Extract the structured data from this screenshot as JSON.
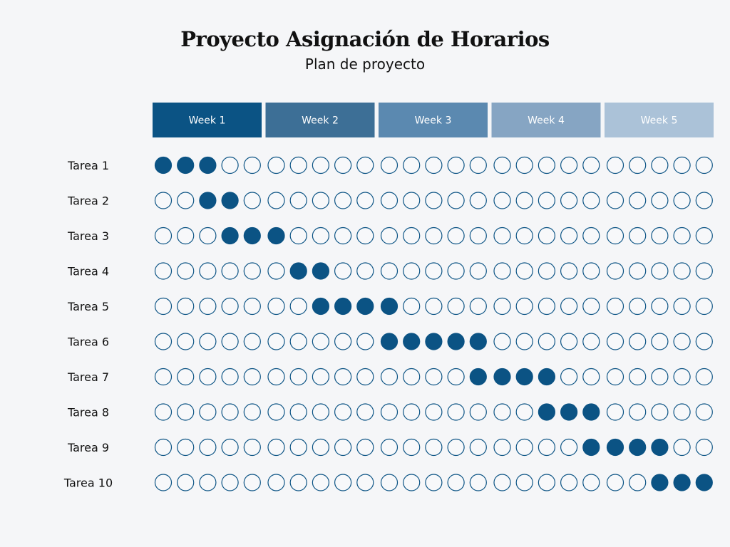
{
  "chart_data": {
    "type": "table",
    "title": "Proyecto Asignación de Horarios",
    "subtitle": "Plan de proyecto",
    "weeks": [
      "Week 1",
      "Week 2",
      "Week 3",
      "Week 4",
      "Week 5"
    ],
    "days_per_week": 5,
    "week_colors": [
      "#0b5384",
      "#3d6f96",
      "#5b89b0",
      "#86a5c3",
      "#abc2d8"
    ],
    "filled_color": "#0b5384",
    "tasks": [
      {
        "name": "Tarea 1",
        "start_day": 1,
        "end_day": 3
      },
      {
        "name": "Tarea 2",
        "start_day": 3,
        "end_day": 4
      },
      {
        "name": "Tarea 3",
        "start_day": 4,
        "end_day": 6
      },
      {
        "name": "Tarea 4",
        "start_day": 7,
        "end_day": 8
      },
      {
        "name": "Tarea 5",
        "start_day": 8,
        "end_day": 11
      },
      {
        "name": "Tarea 6",
        "start_day": 11,
        "end_day": 15
      },
      {
        "name": "Tarea 7",
        "start_day": 15,
        "end_day": 18
      },
      {
        "name": "Tarea 8",
        "start_day": 18,
        "end_day": 20
      },
      {
        "name": "Tarea 9",
        "start_day": 20,
        "end_day": 23
      },
      {
        "name": "Tarea 10",
        "start_day": 23,
        "end_day": 25
      }
    ]
  }
}
